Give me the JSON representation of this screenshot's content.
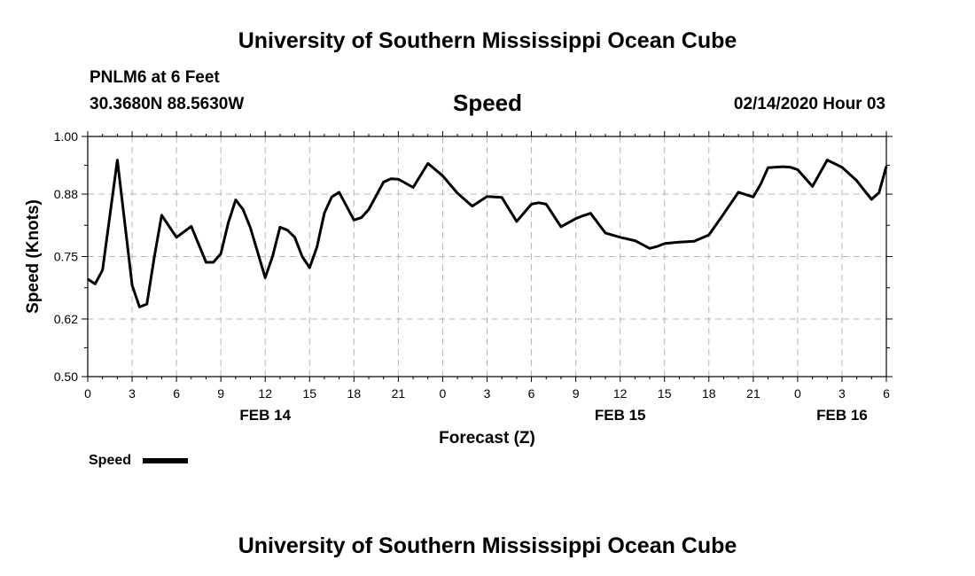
{
  "header": {
    "title_top": "University of Southern Mississippi Ocean Cube",
    "station": "PNLM6 at 6 Feet",
    "coords": "30.3680N 88.5630W",
    "chart_title": "Speed",
    "datetime": "02/14/2020 Hour 03",
    "title_bottom": "University of Southern Mississippi Ocean Cube"
  },
  "colors": {
    "line": "#000000",
    "grid": "#b4b4b4",
    "axis": "#000000"
  },
  "chart_data": {
    "type": "line",
    "title": "Speed",
    "xlabel": "Forecast (Z)",
    "ylabel": "Speed (Knots)",
    "ylim": [
      0.5,
      1.0
    ],
    "xlim": [
      0,
      54
    ],
    "y_ticks": [
      0.5,
      0.62,
      0.75,
      0.88,
      1.0
    ],
    "y_tick_labels": [
      "0.50",
      "0.62",
      "0.75",
      "0.88",
      "1.00"
    ],
    "x_ticks": [
      0,
      3,
      6,
      9,
      12,
      15,
      18,
      21,
      24,
      27,
      30,
      33,
      36,
      39,
      42,
      45,
      48,
      51,
      54
    ],
    "x_tick_labels": [
      "0",
      "3",
      "6",
      "9",
      "12",
      "15",
      "18",
      "21",
      "0",
      "3",
      "6",
      "9",
      "12",
      "15",
      "18",
      "21",
      "0",
      "3",
      "6"
    ],
    "date_labels": [
      {
        "label": "FEB 14",
        "x": 12
      },
      {
        "label": "FEB 15",
        "x": 36
      },
      {
        "label": "FEB 16",
        "x": 51
      }
    ],
    "legend": {
      "label": "Speed",
      "placement": "bottom-left"
    },
    "series": [
      {
        "name": "Speed",
        "x": [
          0,
          0.5,
          1,
          2,
          3,
          3.5,
          4,
          4.5,
          5,
          6,
          7,
          8,
          8.5,
          9,
          9.5,
          10,
          10.5,
          11,
          12,
          12.5,
          13,
          13.5,
          14,
          14.5,
          15,
          15.5,
          16,
          16.5,
          17,
          18,
          18.5,
          19,
          20,
          20.5,
          21,
          22,
          23,
          24,
          25,
          26,
          27,
          28,
          29,
          30,
          30.5,
          31,
          32,
          33,
          33.5,
          34,
          35,
          36,
          37,
          38,
          38.5,
          39,
          40,
          41,
          42,
          43,
          44,
          45,
          45.5,
          46,
          47,
          47.5,
          48,
          49,
          50,
          51,
          52,
          52.5,
          53,
          53.5,
          54
        ],
        "y": [
          0.703,
          0.693,
          0.722,
          0.951,
          0.69,
          0.645,
          0.651,
          0.749,
          0.836,
          0.79,
          0.813,
          0.738,
          0.738,
          0.756,
          0.82,
          0.868,
          0.848,
          0.81,
          0.706,
          0.751,
          0.811,
          0.805,
          0.79,
          0.75,
          0.727,
          0.77,
          0.841,
          0.874,
          0.884,
          0.826,
          0.831,
          0.848,
          0.905,
          0.912,
          0.911,
          0.894,
          0.944,
          0.918,
          0.882,
          0.855,
          0.875,
          0.873,
          0.823,
          0.859,
          0.862,
          0.859,
          0.812,
          0.829,
          0.835,
          0.84,
          0.799,
          0.79,
          0.783,
          0.767,
          0.771,
          0.777,
          0.78,
          0.782,
          0.795,
          0.839,
          0.884,
          0.874,
          0.901,
          0.935,
          0.937,
          0.936,
          0.931,
          0.896,
          0.951,
          0.936,
          0.908,
          0.888,
          0.869,
          0.883,
          0.938
        ]
      }
    ]
  }
}
